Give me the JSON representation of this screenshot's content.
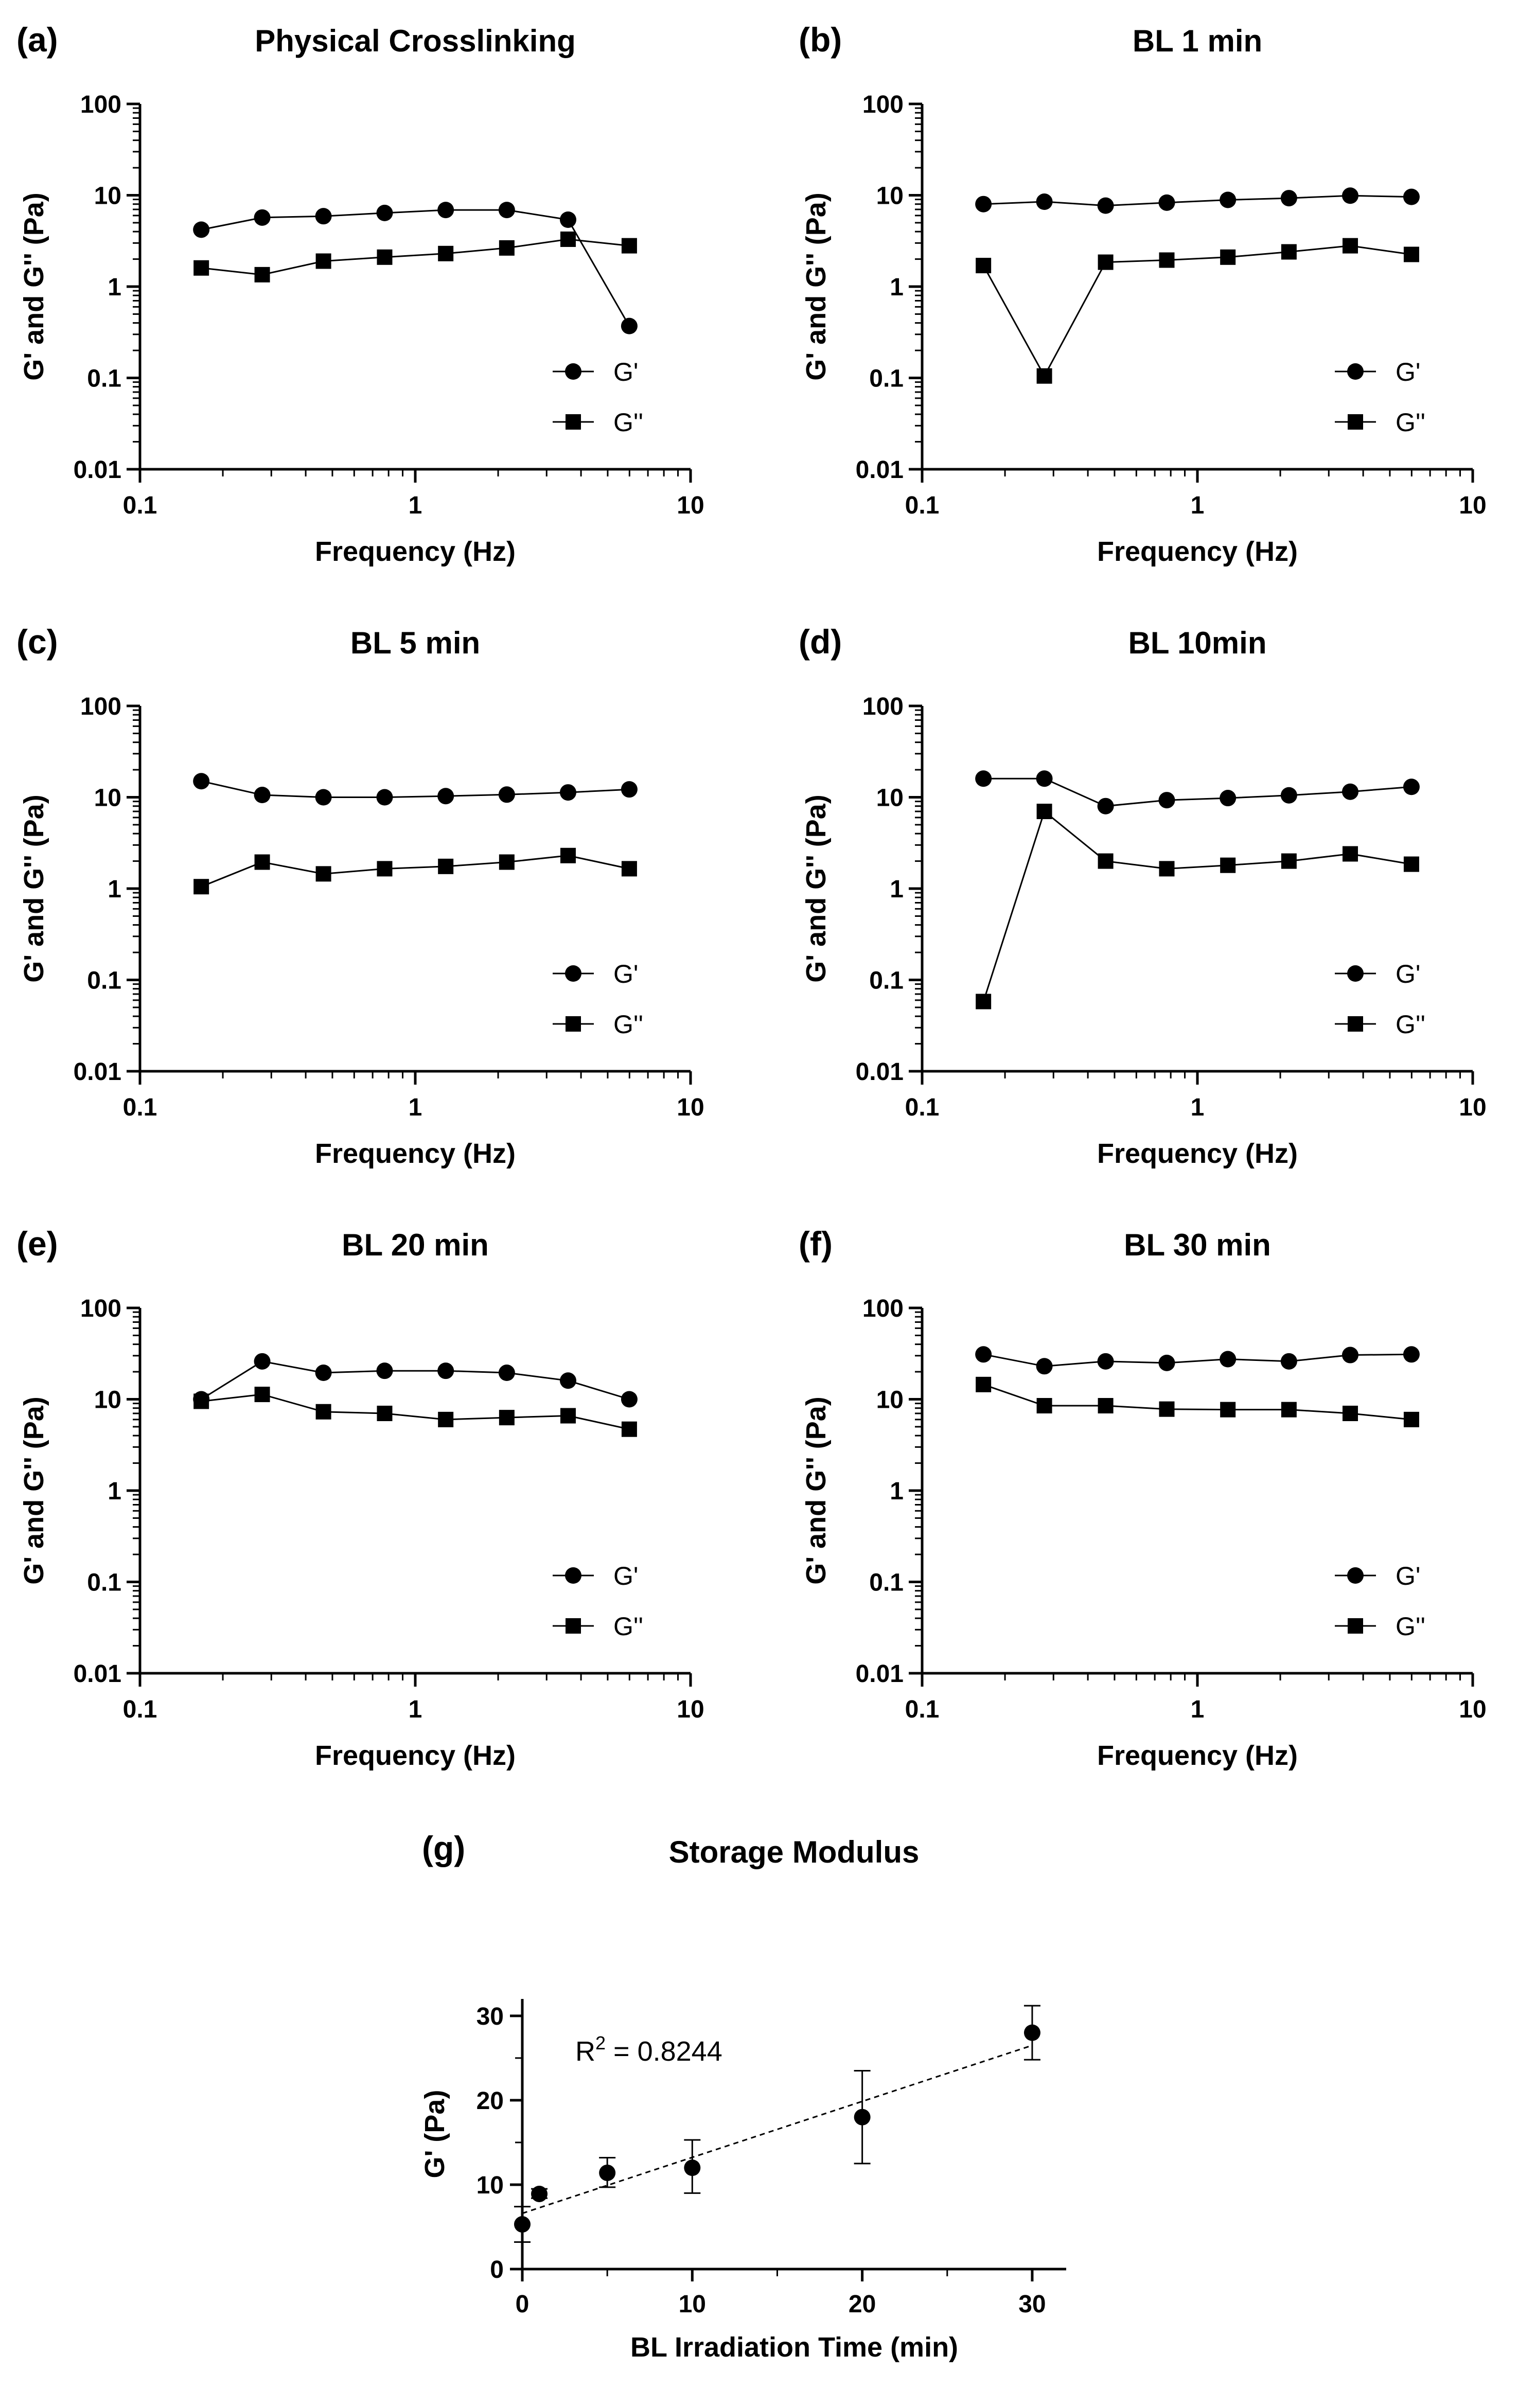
{
  "colors": {
    "marker": "#000000",
    "line": "#000000",
    "background": "#ffffff"
  },
  "chart_data": [
    {
      "panel": "(a)",
      "title": "Physical Crosslinking",
      "type": "line",
      "xlabel": "Frequency (Hz)",
      "ylabel": "G' and G'' (Pa)",
      "xscale": "log",
      "yscale": "log",
      "xlim": [
        0.1,
        10
      ],
      "ylim": [
        0.01,
        100
      ],
      "xticks": [
        "0.1",
        "1",
        "10"
      ],
      "yticks": [
        "0.01",
        "0.1",
        "1",
        "10",
        "100"
      ],
      "grid": false,
      "legend": "bottom-right",
      "x": [
        0.167,
        0.278,
        0.464,
        0.774,
        1.29,
        2.15,
        3.59,
        5.99
      ],
      "series": [
        {
          "name": "G'",
          "marker": "circle",
          "values": [
            4.2,
            5.7,
            5.9,
            6.4,
            6.9,
            6.9,
            5.4,
            0.37
          ]
        },
        {
          "name": "G''",
          "marker": "square",
          "values": [
            1.6,
            1.35,
            1.9,
            2.1,
            2.3,
            2.65,
            3.3,
            2.8
          ]
        }
      ]
    },
    {
      "panel": "(b)",
      "title": "BL 1 min",
      "type": "line",
      "xlabel": "Frequency (Hz)",
      "ylabel": "G' and G'' (Pa)",
      "xscale": "log",
      "yscale": "log",
      "xlim": [
        0.1,
        10
      ],
      "ylim": [
        0.01,
        100
      ],
      "xticks": [
        "0.1",
        "1",
        "10"
      ],
      "yticks": [
        "0.01",
        "0.1",
        "1",
        "10",
        "100"
      ],
      "grid": false,
      "legend": "bottom-right",
      "x": [
        0.167,
        0.278,
        0.464,
        0.774,
        1.29,
        2.15,
        3.59,
        5.99
      ],
      "series": [
        {
          "name": "G'",
          "marker": "circle",
          "values": [
            8.0,
            8.5,
            7.7,
            8.3,
            8.9,
            9.3,
            9.9,
            9.6
          ]
        },
        {
          "name": "G''",
          "marker": "square",
          "values": [
            1.7,
            0.105,
            1.85,
            1.95,
            2.1,
            2.4,
            2.8,
            2.25
          ]
        }
      ]
    },
    {
      "panel": "(c)",
      "title": "BL 5 min",
      "type": "line",
      "xlabel": "Frequency (Hz)",
      "ylabel": "G' and G'' (Pa)",
      "xscale": "log",
      "yscale": "log",
      "xlim": [
        0.1,
        10
      ],
      "ylim": [
        0.01,
        100
      ],
      "xticks": [
        "0.1",
        "1",
        "10"
      ],
      "yticks": [
        "0.01",
        "0.1",
        "1",
        "10",
        "100"
      ],
      "grid": false,
      "legend": "bottom-right",
      "x": [
        0.167,
        0.278,
        0.464,
        0.774,
        1.29,
        2.15,
        3.59,
        5.99
      ],
      "series": [
        {
          "name": "G'",
          "marker": "circle",
          "values": [
            15.0,
            10.6,
            10.0,
            10.0,
            10.3,
            10.7,
            11.3,
            12.2
          ]
        },
        {
          "name": "G''",
          "marker": "square",
          "values": [
            1.05,
            1.95,
            1.45,
            1.65,
            1.75,
            1.95,
            2.3,
            1.65
          ]
        }
      ]
    },
    {
      "panel": "(d)",
      "title": "BL 10min",
      "type": "line",
      "xlabel": "Frequency (Hz)",
      "ylabel": "G' and G'' (Pa)",
      "xscale": "log",
      "yscale": "log",
      "xlim": [
        0.1,
        10
      ],
      "ylim": [
        0.01,
        100
      ],
      "xticks": [
        "0.1",
        "1",
        "10"
      ],
      "yticks": [
        "0.01",
        "0.1",
        "1",
        "10",
        "100"
      ],
      "grid": false,
      "legend": "bottom-right",
      "x": [
        0.167,
        0.278,
        0.464,
        0.774,
        1.29,
        2.15,
        3.59,
        5.99
      ],
      "series": [
        {
          "name": "G'",
          "marker": "circle",
          "values": [
            16.0,
            16.0,
            8.0,
            9.3,
            9.8,
            10.5,
            11.5,
            13.0
          ]
        },
        {
          "name": "G''",
          "marker": "square",
          "values": [
            0.058,
            7.0,
            2.0,
            1.65,
            1.8,
            2.0,
            2.4,
            1.85
          ]
        }
      ]
    },
    {
      "panel": "(e)",
      "title": "BL 20 min",
      "type": "line",
      "xlabel": "Frequency (Hz)",
      "ylabel": "G' and G'' (Pa)",
      "xscale": "log",
      "yscale": "log",
      "xlim": [
        0.1,
        10
      ],
      "ylim": [
        0.01,
        100
      ],
      "xticks": [
        "0.1",
        "1",
        "10"
      ],
      "yticks": [
        "0.01",
        "0.1",
        "1",
        "10",
        "100"
      ],
      "grid": false,
      "legend": "bottom-right",
      "x": [
        0.167,
        0.278,
        0.464,
        0.774,
        1.29,
        2.15,
        3.59,
        5.99
      ],
      "series": [
        {
          "name": "G'",
          "marker": "circle",
          "values": [
            10.0,
            26.0,
            19.5,
            20.5,
            20.5,
            19.5,
            16.0,
            10.0
          ]
        },
        {
          "name": "G''",
          "marker": "square",
          "values": [
            9.5,
            11.3,
            7.3,
            7.0,
            6.0,
            6.3,
            6.6,
            4.7
          ]
        }
      ]
    },
    {
      "panel": "(f)",
      "title": "BL 30 min",
      "type": "line",
      "xlabel": "Frequency (Hz)",
      "ylabel": "G' and G'' (Pa)",
      "xscale": "log",
      "yscale": "log",
      "xlim": [
        0.1,
        10
      ],
      "ylim": [
        0.01,
        100
      ],
      "xticks": [
        "0.1",
        "1",
        "10"
      ],
      "yticks": [
        "0.01",
        "0.1",
        "1",
        "10",
        "100"
      ],
      "grid": false,
      "legend": "bottom-right",
      "x": [
        0.167,
        0.278,
        0.464,
        0.774,
        1.29,
        2.15,
        3.59,
        5.99
      ],
      "series": [
        {
          "name": "G'",
          "marker": "circle",
          "values": [
            31.0,
            23.0,
            26.0,
            25.0,
            27.5,
            26.0,
            30.5,
            31.0
          ]
        },
        {
          "name": "G''",
          "marker": "square",
          "values": [
            14.5,
            8.5,
            8.5,
            7.8,
            7.7,
            7.7,
            7.0,
            6.0
          ]
        }
      ]
    },
    {
      "panel": "(g)",
      "title": "Storage Modulus",
      "type": "scatter",
      "xlabel": "BL Irradiation Time (min)",
      "ylabel": "G' (Pa)",
      "xlim": [
        0,
        32
      ],
      "ylim": [
        0,
        32
      ],
      "xticks": [
        "0",
        "10",
        "20",
        "30"
      ],
      "yticks": [
        "0",
        "10",
        "20",
        "30"
      ],
      "grid": false,
      "x": [
        0,
        1,
        5,
        10,
        20,
        30
      ],
      "y": [
        5.3,
        8.9,
        11.4,
        12.0,
        18.0,
        28.0
      ],
      "error_low": [
        3.2,
        8.4,
        9.7,
        9.0,
        12.5,
        24.8
      ],
      "error_high": [
        7.4,
        9.5,
        13.2,
        15.3,
        23.5,
        31.2
      ],
      "fit": {
        "type": "linear",
        "x": [
          0,
          30
        ],
        "y": [
          6.6,
          26.5
        ],
        "style": "dashed"
      },
      "annotation": {
        "prefix": "R",
        "sup": "2",
        "suffix": " = 0.8244"
      }
    }
  ]
}
